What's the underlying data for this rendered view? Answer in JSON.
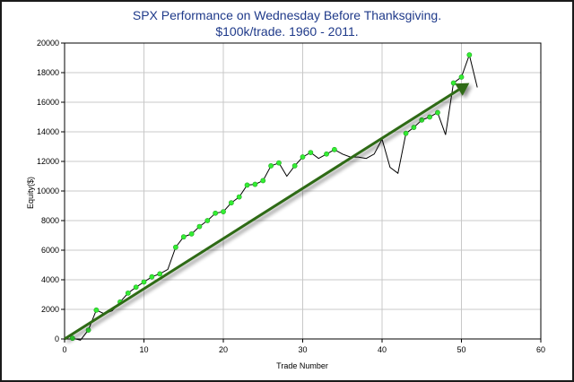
{
  "chart_data": {
    "type": "line",
    "title_line1": "SPX Performance on Wednesday Before Thanksgiving.",
    "title_line2": "$100k/trade. 1960 - 2011.",
    "xlabel": "Trade Number",
    "ylabel": "Equity($)",
    "xlim": [
      0,
      60
    ],
    "ylim": [
      0,
      20000
    ],
    "xticks": [
      0,
      10,
      20,
      30,
      40,
      50,
      60
    ],
    "yticks": [
      0,
      2000,
      4000,
      6000,
      8000,
      10000,
      12000,
      14000,
      16000,
      18000,
      20000
    ],
    "grid": true,
    "colors": {
      "line": "#000000",
      "marker": "#33ee33",
      "marker_edge": "#22aa22",
      "arrow": "#2d6a12",
      "grid": "#c8c8c8",
      "title": "#1f3a8a"
    },
    "equity": [
      [
        1,
        50
      ],
      [
        2,
        -80
      ],
      [
        3,
        600
      ],
      [
        4,
        1950
      ],
      [
        5,
        1700
      ],
      [
        6,
        1900
      ],
      [
        7,
        2500
      ],
      [
        8,
        3100
      ],
      [
        9,
        3500
      ],
      [
        10,
        3850
      ],
      [
        11,
        4200
      ],
      [
        12,
        4400
      ],
      [
        13,
        4700
      ],
      [
        14,
        6200
      ],
      [
        15,
        6900
      ],
      [
        16,
        7100
      ],
      [
        17,
        7600
      ],
      [
        18,
        8000
      ],
      [
        19,
        8500
      ],
      [
        20,
        8600
      ],
      [
        21,
        9200
      ],
      [
        22,
        9600
      ],
      [
        23,
        10400
      ],
      [
        24,
        10450
      ],
      [
        25,
        10700
      ],
      [
        26,
        11700
      ],
      [
        27,
        11900
      ],
      [
        28,
        11000
      ],
      [
        29,
        11700
      ],
      [
        30,
        12300
      ],
      [
        31,
        12600
      ],
      [
        32,
        12200
      ],
      [
        33,
        12500
      ],
      [
        34,
        12800
      ],
      [
        35,
        12500
      ],
      [
        36,
        12300
      ],
      [
        37,
        12300
      ],
      [
        38,
        12200
      ],
      [
        39,
        12500
      ],
      [
        40,
        13500
      ],
      [
        41,
        11600
      ],
      [
        42,
        11200
      ],
      [
        43,
        13900
      ],
      [
        44,
        14300
      ],
      [
        45,
        14800
      ],
      [
        46,
        15000
      ],
      [
        47,
        15300
      ],
      [
        48,
        13800
      ],
      [
        49,
        17300
      ],
      [
        50,
        17700
      ],
      [
        51,
        19200
      ],
      [
        52,
        17000
      ]
    ],
    "markers": [
      [
        1,
        50
      ],
      [
        3,
        600
      ],
      [
        4,
        1950
      ],
      [
        7,
        2500
      ],
      [
        8,
        3100
      ],
      [
        9,
        3500
      ],
      [
        10,
        3850
      ],
      [
        11,
        4200
      ],
      [
        12,
        4400
      ],
      [
        14,
        6200
      ],
      [
        15,
        6900
      ],
      [
        16,
        7100
      ],
      [
        17,
        7600
      ],
      [
        18,
        8000
      ],
      [
        19,
        8500
      ],
      [
        20,
        8600
      ],
      [
        21,
        9200
      ],
      [
        22,
        9600
      ],
      [
        23,
        10400
      ],
      [
        24,
        10450
      ],
      [
        25,
        10700
      ],
      [
        26,
        11700
      ],
      [
        27,
        11900
      ],
      [
        29,
        11700
      ],
      [
        30,
        12300
      ],
      [
        31,
        12600
      ],
      [
        33,
        12500
      ],
      [
        34,
        12800
      ],
      [
        43,
        13900
      ],
      [
        44,
        14300
      ],
      [
        45,
        14800
      ],
      [
        46,
        15000
      ],
      [
        47,
        15300
      ],
      [
        49,
        17300
      ],
      [
        50,
        17700
      ],
      [
        51,
        19200
      ]
    ],
    "trend_arrow": {
      "from": [
        0,
        0
      ],
      "to": [
        51,
        17300
      ]
    }
  }
}
